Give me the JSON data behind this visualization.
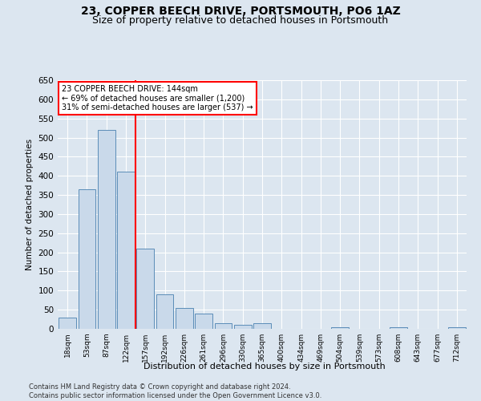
{
  "title": "23, COPPER BEECH DRIVE, PORTSMOUTH, PO6 1AZ",
  "subtitle": "Size of property relative to detached houses in Portsmouth",
  "xlabel": "Distribution of detached houses by size in Portsmouth",
  "ylabel": "Number of detached properties",
  "bar_labels": [
    "18sqm",
    "53sqm",
    "87sqm",
    "122sqm",
    "157sqm",
    "192sqm",
    "226sqm",
    "261sqm",
    "296sqm",
    "330sqm",
    "365sqm",
    "400sqm",
    "434sqm",
    "469sqm",
    "504sqm",
    "539sqm",
    "573sqm",
    "608sqm",
    "643sqm",
    "677sqm",
    "712sqm"
  ],
  "bar_values": [
    30,
    365,
    520,
    410,
    210,
    90,
    55,
    40,
    15,
    10,
    15,
    0,
    0,
    0,
    5,
    0,
    0,
    5,
    0,
    0,
    5
  ],
  "bar_color": "#c9d9ea",
  "bar_edge_color": "#5b8db8",
  "vline_x": 4.0,
  "vline_color": "red",
  "annotation_text": "23 COPPER BEECH DRIVE: 144sqm\n← 69% of detached houses are smaller (1,200)\n31% of semi-detached houses are larger (537) →",
  "annotation_box_color": "white",
  "annotation_box_edge": "red",
  "ylim": [
    0,
    650
  ],
  "yticks": [
    0,
    50,
    100,
    150,
    200,
    250,
    300,
    350,
    400,
    450,
    500,
    550,
    600,
    650
  ],
  "background_color": "#dce6f0",
  "plot_bg_color": "#dce6f0",
  "title_fontsize": 10,
  "subtitle_fontsize": 9,
  "footer_text": "Contains HM Land Registry data © Crown copyright and database right 2024.\nContains public sector information licensed under the Open Government Licence v3.0."
}
